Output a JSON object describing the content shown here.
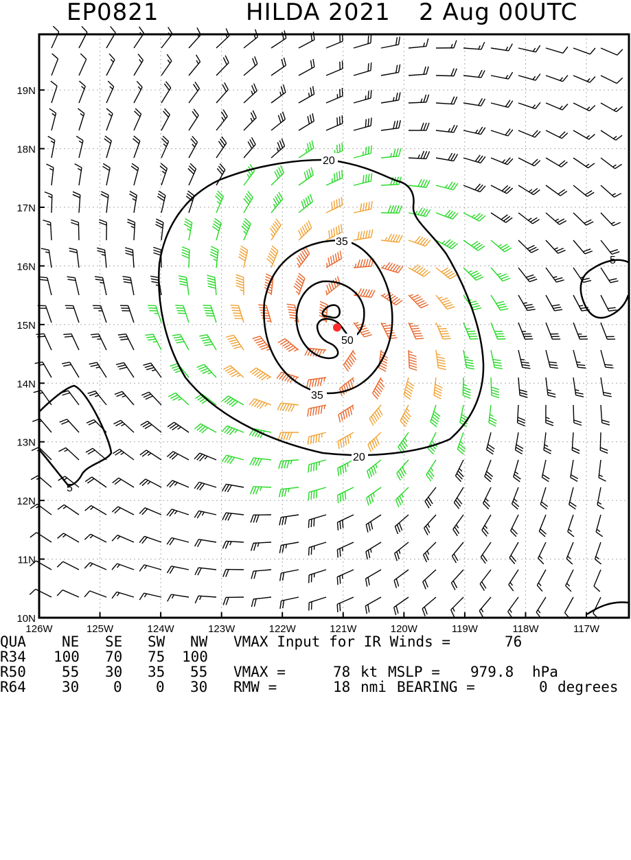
{
  "title": {
    "storm_id": "EP0821",
    "storm_name_year": "HILDA 2021",
    "datetime": "2 Aug 00UTC"
  },
  "map": {
    "lon_range": [
      -126.0,
      -116.3
    ],
    "lat_range": [
      10.0,
      19.95
    ],
    "lon_ticks": [
      {
        "value": -126,
        "label": "126W"
      },
      {
        "value": -125,
        "label": "125W"
      },
      {
        "value": -124,
        "label": "124W"
      },
      {
        "value": -123,
        "label": "123W"
      },
      {
        "value": -122,
        "label": "122W"
      },
      {
        "value": -121,
        "label": "121W"
      },
      {
        "value": -120,
        "label": "120W"
      },
      {
        "value": -119,
        "label": "119W"
      },
      {
        "value": -118,
        "label": "118W"
      },
      {
        "value": -117,
        "label": "117W"
      }
    ],
    "lat_ticks": [
      {
        "value": 10,
        "label": "10N"
      },
      {
        "value": 11,
        "label": "11N"
      },
      {
        "value": 12,
        "label": "12N"
      },
      {
        "value": 13,
        "label": "13N"
      },
      {
        "value": 14,
        "label": "14N"
      },
      {
        "value": 15,
        "label": "15N"
      },
      {
        "value": 16,
        "label": "16N"
      },
      {
        "value": 17,
        "label": "17N"
      },
      {
        "value": 18,
        "label": "18N"
      },
      {
        "value": 19,
        "label": "19N"
      }
    ],
    "center": {
      "lon": -121.1,
      "lat": 14.95
    },
    "wind_color_legend": {
      "lt34": "#000000",
      "34to49": "#22d822",
      "50to63": "#f0a030",
      "64plus": "#e86428",
      "center": "#ff2a2a"
    },
    "contour_labels": [
      "20",
      "35",
      "50",
      "20",
      "35",
      "5",
      "5"
    ]
  },
  "stats": {
    "rows": [
      [
        "QUA",
        "NE",
        "SE",
        "SW",
        "NW"
      ],
      [
        "R34",
        "100",
        "70",
        "75",
        "100"
      ],
      [
        "R50",
        "55",
        "30",
        "35",
        "55"
      ],
      [
        "R64",
        "30",
        "0",
        "0",
        "30"
      ]
    ],
    "vmax_input_label": "VMAX Input for IR Winds =",
    "vmax_input_value": "76",
    "vmax_label": "VMAX =",
    "vmax_value": "78",
    "vmax_unit": "kt",
    "mslp_label": "MSLP =",
    "mslp_value": "979.8",
    "mslp_unit": "hPa",
    "rmw_label": "RMW =",
    "rmw_value": "18",
    "rmw_unit": "nmi",
    "bearing_label": "BEARING =",
    "bearing_value": "0",
    "bearing_unit": "degrees"
  }
}
